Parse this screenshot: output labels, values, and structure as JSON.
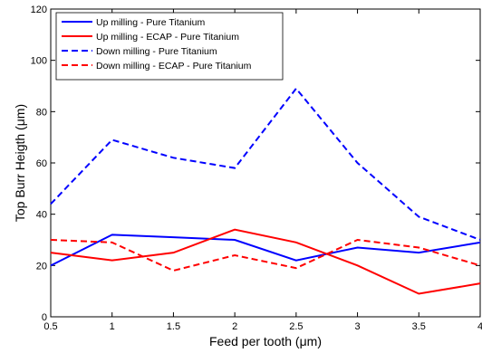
{
  "chart_data": {
    "type": "line",
    "title": "",
    "xlabel": "Feed per tooth (μm)",
    "ylabel": "Top Burr Heigth (μm)",
    "xlim": [
      0.5,
      4
    ],
    "ylim": [
      0,
      120
    ],
    "xticks": [
      "0.5",
      "1",
      "1.5",
      "2",
      "2.5",
      "3",
      "3.5",
      "4"
    ],
    "yticks": [
      "0",
      "20",
      "40",
      "60",
      "80",
      "100",
      "120"
    ],
    "grid": false,
    "legend_position": "top-left",
    "x": [
      0.5,
      1,
      1.5,
      2,
      2.5,
      3,
      3.5,
      4
    ],
    "series": [
      {
        "name": "Up milling - Pure Titanium",
        "color": "#0000ff",
        "dash": "solid",
        "values": [
          20,
          32,
          31,
          30,
          22,
          27,
          25,
          29
        ]
      },
      {
        "name": "Up milling - ECAP - Pure Titanium",
        "color": "#ff0000",
        "dash": "solid",
        "values": [
          25,
          22,
          25,
          34,
          29,
          20,
          9,
          13
        ]
      },
      {
        "name": "Down milling - Pure Titanium",
        "color": "#0000ff",
        "dash": "dashed",
        "values": [
          44,
          69,
          62,
          58,
          89,
          60,
          39,
          30
        ]
      },
      {
        "name": "Down milling - ECAP - Pure Titanium",
        "color": "#ff0000",
        "dash": "dashed",
        "values": [
          30,
          29,
          18,
          24,
          19,
          30,
          27,
          20
        ]
      }
    ]
  }
}
